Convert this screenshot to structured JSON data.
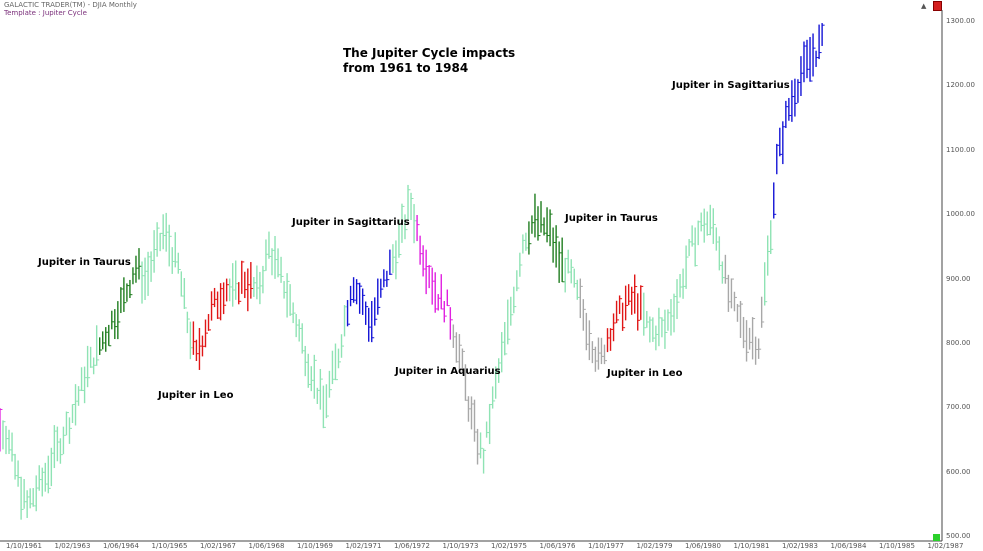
{
  "header": {
    "app": "GALACTIC TRADER(TM) - DJIA Monthly",
    "template": "Template : Jupiter Cycle"
  },
  "chart_data": {
    "type": "bar",
    "title_line1": "The Jupiter Cycle impacts",
    "title_line2": "from 1961 to 1984",
    "ylim": [
      500,
      1300
    ],
    "yticks": [
      "1300.00",
      "1200.00",
      "1100.00",
      "1000.00",
      "900.00",
      "800.00",
      "700.00",
      "600.00",
      "500.00"
    ],
    "xticks": [
      "1/10/1961",
      "1/02/1963",
      "1/06/1964",
      "1/10/1965",
      "1/02/1967",
      "1/06/1968",
      "1/10/1969",
      "1/02/1971",
      "1/06/1972",
      "1/10/1973",
      "1/02/1975",
      "1/06/1976",
      "1/10/1977",
      "1/02/1979",
      "1/06/1980",
      "1/10/1981",
      "1/02/1983",
      "1/06/1984",
      "1/10/1985",
      "1/02/1987"
    ],
    "x_range": [
      1961.75,
      1987.5
    ],
    "colors": {
      "default": "#8fe3b4",
      "gray": "#a8a8a8",
      "taurus": "#1f7d1f",
      "leo": "#e01616",
      "sagittarius": "#1414d6",
      "aquarius": "#e020e0"
    },
    "annotations": [
      {
        "label": "Jupiter in Taurus",
        "color": "#1f7d1f"
      },
      {
        "label": "Jupiter in Leo",
        "color": "#e01616"
      },
      {
        "label": "Jupiter in Sagittarius",
        "color": "#1414d6"
      },
      {
        "label": "Jupiter in Aquarius",
        "color": "#e020e0"
      },
      {
        "label": "Jupiter in Taurus",
        "color": "#1f7d1f"
      },
      {
        "label": "Jupiter in Leo",
        "color": "#e01616"
      },
      {
        "label": "Jupiter in Sagittarius",
        "color": "#1414d6"
      }
    ],
    "anchors": [
      [
        1961.0,
        705,
        "aquarius"
      ],
      [
        1961.5,
        690,
        "aquarius"
      ],
      [
        1961.75,
        660,
        "default"
      ],
      [
        1962.3,
        545,
        "default"
      ],
      [
        1962.8,
        590,
        "default"
      ],
      [
        1963.5,
        680,
        "default"
      ],
      [
        1964.0,
        760,
        "default"
      ],
      [
        1964.5,
        815,
        "taurus"
      ],
      [
        1965.0,
        870,
        "taurus"
      ],
      [
        1965.3,
        920,
        "taurus"
      ],
      [
        1965.6,
        900,
        "default"
      ],
      [
        1966.1,
        975,
        "default"
      ],
      [
        1966.5,
        920,
        "default"
      ],
      [
        1966.8,
        820,
        "default"
      ],
      [
        1967.0,
        780,
        "leo"
      ],
      [
        1967.4,
        850,
        "leo"
      ],
      [
        1967.8,
        890,
        "leo"
      ],
      [
        1968.0,
        880,
        "default"
      ],
      [
        1968.3,
        900,
        "leo"
      ],
      [
        1968.7,
        880,
        "default"
      ],
      [
        1969.0,
        950,
        "default"
      ],
      [
        1969.5,
        880,
        "default"
      ],
      [
        1970.1,
        770,
        "default"
      ],
      [
        1970.5,
        700,
        "default"
      ],
      [
        1970.9,
        780,
        "default"
      ],
      [
        1971.3,
        900,
        "sagittarius"
      ],
      [
        1971.8,
        830,
        "sagittarius"
      ],
      [
        1972.2,
        900,
        "sagittarius"
      ],
      [
        1972.6,
        960,
        "default"
      ],
      [
        1972.9,
        1020,
        "default"
      ],
      [
        1973.2,
        950,
        "aquarius"
      ],
      [
        1973.6,
        880,
        "aquarius"
      ],
      [
        1973.9,
        860,
        "aquarius"
      ],
      [
        1974.2,
        800,
        "gray"
      ],
      [
        1974.6,
        680,
        "gray"
      ],
      [
        1974.9,
        620,
        "default"
      ],
      [
        1975.2,
        720,
        "default"
      ],
      [
        1975.6,
        830,
        "default"
      ],
      [
        1976.0,
        960,
        "default"
      ],
      [
        1976.3,
        990,
        "taurus"
      ],
      [
        1976.7,
        980,
        "taurus"
      ],
      [
        1977.0,
        930,
        "taurus"
      ],
      [
        1977.3,
        910,
        "default"
      ],
      [
        1977.7,
        840,
        "gray"
      ],
      [
        1978.1,
        770,
        "gray"
      ],
      [
        1978.4,
        820,
        "leo"
      ],
      [
        1978.8,
        860,
        "leo"
      ],
      [
        1979.1,
        870,
        "leo"
      ],
      [
        1979.5,
        820,
        "default"
      ],
      [
        1979.9,
        820,
        "default"
      ],
      [
        1980.3,
        880,
        "default"
      ],
      [
        1980.7,
        960,
        "default"
      ],
      [
        1981.0,
        990,
        "default"
      ],
      [
        1981.3,
        980,
        "default"
      ],
      [
        1981.7,
        870,
        "gray"
      ],
      [
        1982.1,
        820,
        "gray"
      ],
      [
        1982.5,
        800,
        "gray"
      ],
      [
        1982.8,
        960,
        "default"
      ],
      [
        1983.0,
        1080,
        "sagittarius"
      ],
      [
        1983.3,
        1160,
        "sagittarius"
      ],
      [
        1983.6,
        1210,
        "sagittarius"
      ],
      [
        1984.0,
        1250,
        "sagittarius"
      ],
      [
        1984.3,
        1270,
        "sagittarius"
      ]
    ]
  }
}
